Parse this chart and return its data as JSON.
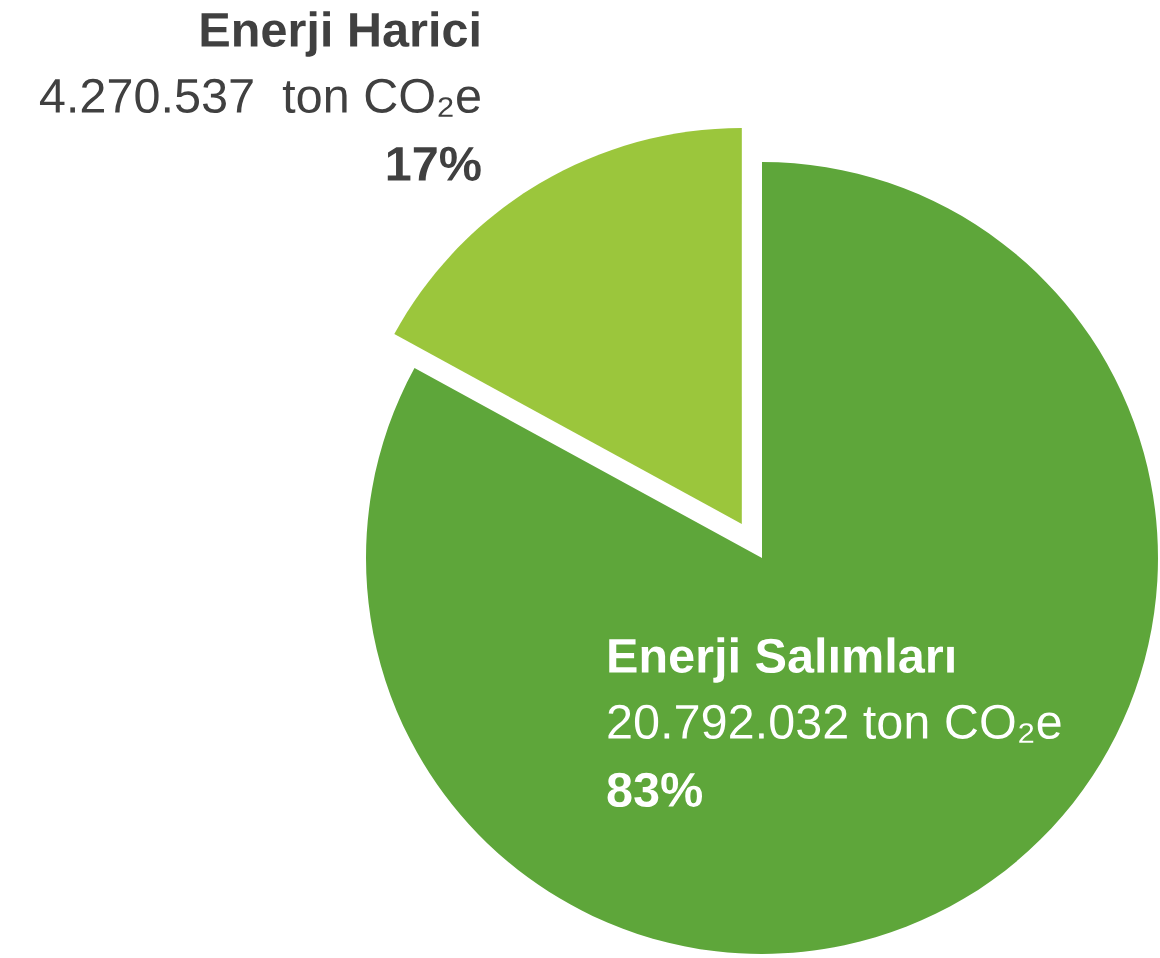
{
  "chart_data": {
    "type": "pie",
    "categories": [
      "Enerji Harici",
      "Enerji Salımları"
    ],
    "values": [
      4270537,
      20792032
    ],
    "value_labels": [
      "4.270.537  ton CO₂e",
      "20.792.032 ton CO₂e"
    ],
    "annotations": [
      "17%",
      "83%"
    ],
    "colors": [
      "#9bc63c",
      "#5ea63a"
    ],
    "legend": false
  }
}
